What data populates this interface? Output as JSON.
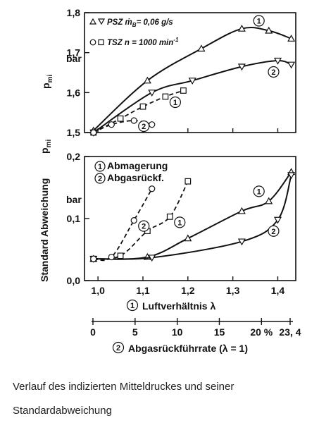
{
  "caption": {
    "line1": "Verlauf des indizierten Mitteldruckes und seiner",
    "line2": "Standardabweichung"
  },
  "chart_data": [
    {
      "type": "line",
      "panel": "top",
      "ylabel_symbol": "p",
      "ylabel_sub": "mi",
      "yunit": "bar",
      "xlim": [
        0.97,
        1.44
      ],
      "ylim": [
        1.5,
        1.8
      ],
      "yticks": [
        "1,8",
        "1,7",
        "1,6",
        "1,5"
      ],
      "ytick_values": [
        1.8,
        1.7,
        1.6,
        1.5
      ],
      "legend": {
        "line1": "PSZ ṁ",
        "line1_sub": "B",
        "line1_rest": "= 0,06 g/s",
        "line2": "TSZ n = 1000 min",
        "line2_sup": "-1"
      },
      "series": [
        {
          "name": "PSZ Abmagerung",
          "style": "solid",
          "marker": "triangle-up",
          "label": "1",
          "x": [
            0.99,
            1.11,
            1.23,
            1.32,
            1.38,
            1.43
          ],
          "y": [
            1.505,
            1.63,
            1.71,
            1.76,
            1.755,
            1.735
          ]
        },
        {
          "name": "PSZ Abgasrückf.",
          "style": "solid",
          "marker": "triangle-down",
          "label": "2",
          "x": [
            0.99,
            1.12,
            1.21,
            1.32,
            1.4,
            1.43
          ],
          "y": [
            1.5,
            1.6,
            1.63,
            1.665,
            1.68,
            1.67
          ]
        },
        {
          "name": "TSZ Abmagerung",
          "style": "dashed",
          "marker": "square",
          "label": "1",
          "x": [
            0.99,
            1.05,
            1.1,
            1.15,
            1.19
          ],
          "y": [
            1.5,
            1.535,
            1.565,
            1.59,
            1.605
          ]
        },
        {
          "name": "TSZ Abgasrückf.",
          "style": "dashed",
          "marker": "circle",
          "label": "2",
          "x": [
            0.99,
            1.03,
            1.08,
            1.12
          ],
          "y": [
            1.5,
            1.52,
            1.53,
            1.52
          ]
        }
      ]
    },
    {
      "type": "line",
      "panel": "bottom",
      "ylabel_title": "Standard Abweichung",
      "ylabel_symbol": "p",
      "ylabel_sub": "mi",
      "yunit": "bar",
      "xlim": [
        0.97,
        1.44
      ],
      "ylim": [
        0,
        0.2
      ],
      "yticks": [
        "0,2",
        "0,1",
        "0,0"
      ],
      "ytick_values": [
        0.2,
        0.1,
        0.0
      ],
      "legend": {
        "item1_num": "1",
        "item1": "Abmagerung",
        "item2_num": "2",
        "item2": "Abgasrückf."
      },
      "series": [
        {
          "name": "PSZ Abmagerung",
          "style": "solid",
          "marker": "triangle-up",
          "label": "1",
          "x": [
            0.99,
            1.11,
            1.2,
            1.32,
            1.38,
            1.43
          ],
          "y": [
            0.035,
            0.038,
            0.068,
            0.112,
            0.128,
            0.175
          ]
        },
        {
          "name": "PSZ Abgasrückf.",
          "style": "solid",
          "marker": "triangle-down",
          "label": "2",
          "x": [
            0.99,
            1.12,
            1.32,
            1.4,
            1.43
          ],
          "y": [
            0.035,
            0.037,
            0.063,
            0.098,
            0.17
          ]
        },
        {
          "name": "TSZ Abmagerung",
          "style": "dashed",
          "marker": "square",
          "label": "1",
          "x": [
            0.99,
            1.05,
            1.11,
            1.16,
            1.2
          ],
          "y": [
            0.035,
            0.04,
            0.08,
            0.103,
            0.16
          ]
        },
        {
          "name": "TSZ Abgasrückf.",
          "style": "dashed",
          "marker": "circle",
          "label": "2",
          "x": [
            0.99,
            1.03,
            1.08,
            1.12
          ],
          "y": [
            0.035,
            0.038,
            0.097,
            0.148
          ]
        }
      ]
    }
  ],
  "axis_x1": {
    "label_num": "1",
    "label": "Luftverhältnis λ",
    "ticks": [
      "1,0",
      "1,1",
      "1,2",
      "1,3",
      "1,4"
    ],
    "tick_values": [
      1.0,
      1.1,
      1.2,
      1.3,
      1.4
    ]
  },
  "axis_x2": {
    "label_num": "2",
    "label": "Abgasrückführrate  (λ = 1)",
    "ticks": [
      "0",
      "5",
      "10",
      "15",
      "20 %",
      "23, 4"
    ],
    "tick_values": [
      0,
      5,
      10,
      15,
      20,
      23.4
    ]
  }
}
